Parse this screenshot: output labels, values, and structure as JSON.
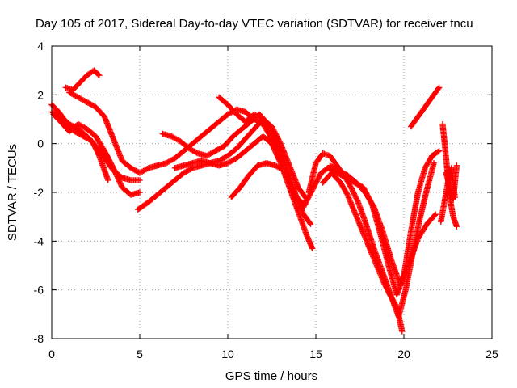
{
  "chart_data": {
    "type": "scatter",
    "title": "Day 105 of 2017, Sidereal Day-to-day VTEC variation (SDTVAR) for receiver tncu",
    "xlabel": "GPS time / hours",
    "ylabel": "SDTVAR / TECUs",
    "xlim": [
      0,
      25
    ],
    "ylim": [
      -8,
      4
    ],
    "xticks": [
      0,
      5,
      10,
      15,
      20,
      25
    ],
    "yticks": [
      -8,
      -6,
      -4,
      -2,
      0,
      2,
      4
    ],
    "grid": true,
    "marker": "+",
    "color": "#ff0000",
    "series": [
      {
        "x": [
          0,
          0.5,
          1.0,
          1.5,
          2.0,
          2.5,
          3.0,
          3.5,
          4.0,
          4.5,
          5.0
        ],
        "y": [
          1.3,
          1.1,
          0.8,
          0.6,
          0.3,
          -0.1,
          -0.6,
          -1.1,
          -1.4,
          -1.5,
          -1.5
        ]
      },
      {
        "x": [
          0,
          0.4,
          0.8,
          1.3,
          1.8,
          2.3,
          2.7,
          3.0,
          3.2
        ],
        "y": [
          1.6,
          1.3,
          0.9,
          0.5,
          0.3,
          0.1,
          -0.5,
          -1.1,
          -1.5
        ]
      },
      {
        "x": [
          0.1,
          0.5,
          1.0,
          1.5,
          2.0,
          2.5,
          3.0,
          3.5,
          4.0,
          4.5,
          5.0
        ],
        "y": [
          1.2,
          0.9,
          0.5,
          0.8,
          0.6,
          0.3,
          -0.3,
          -1.0,
          -1.8,
          -2.1,
          -2.0
        ]
      },
      {
        "x": [
          0.8,
          1.2,
          1.6,
          2.0,
          2.4,
          2.7
        ],
        "y": [
          2.3,
          2.2,
          2.5,
          2.8,
          3.0,
          2.8
        ]
      },
      {
        "x": [
          1.0,
          1.5,
          2.0,
          2.5,
          3.0,
          3.5,
          4.0,
          4.5,
          5.0,
          5.5,
          6.0,
          6.5,
          7.0,
          7.5,
          8.0,
          8.5,
          9.0,
          9.5,
          10.0,
          10.5,
          11.0,
          11.5,
          12.0,
          12.5,
          13.0
        ],
        "y": [
          2.1,
          1.9,
          1.7,
          1.5,
          1.1,
          0.2,
          -0.7,
          -1.0,
          -1.2,
          -1.0,
          -0.9,
          -0.8,
          -0.6,
          -0.3,
          0.0,
          0.3,
          0.6,
          0.9,
          1.2,
          1.4,
          1.3,
          1.0,
          0.8,
          0.2,
          -0.3
        ]
      },
      {
        "x": [
          4.9,
          5.5,
          6.0,
          6.5,
          7.0,
          7.5,
          8.0,
          8.5,
          9.0,
          9.5,
          10.0,
          10.5,
          11.0,
          11.5,
          12.0,
          12.5,
          13.0,
          13.5,
          14.0,
          14.5
        ],
        "y": [
          -2.7,
          -2.4,
          -2.1,
          -1.8,
          -1.5,
          -1.2,
          -1.0,
          -0.9,
          -0.8,
          -0.7,
          -0.5,
          -0.2,
          0.2,
          0.6,
          1.0,
          0.7,
          0.0,
          -0.9,
          -1.8,
          -2.3
        ]
      },
      {
        "x": [
          6.3,
          6.8,
          7.3,
          7.8,
          8.3,
          8.8,
          9.3,
          9.8,
          10.3,
          10.8,
          11.3,
          11.8,
          12.3,
          12.8,
          13.3,
          13.8,
          14.3,
          14.7
        ],
        "y": [
          0.4,
          0.3,
          0.1,
          -0.2,
          -0.4,
          -0.5,
          -0.3,
          -0.1,
          0.3,
          0.6,
          0.9,
          1.2,
          0.8,
          0.1,
          -0.9,
          -2.0,
          -2.9,
          -3.3
        ]
      },
      {
        "x": [
          7.0,
          7.5,
          8.0,
          8.5,
          9.0,
          9.5,
          10.0,
          10.5,
          11.0,
          11.5,
          12.0,
          12.5,
          13.0,
          13.5,
          14.0,
          14.5,
          14.8
        ],
        "y": [
          -1.0,
          -0.9,
          -0.8,
          -0.7,
          -0.8,
          -0.9,
          -0.8,
          -0.6,
          -0.3,
          0.0,
          0.3,
          0.0,
          -0.8,
          -1.8,
          -2.8,
          -3.8,
          -4.3
        ]
      },
      {
        "x": [
          9.5,
          10.0,
          10.5,
          11.0,
          11.5,
          12.0,
          12.5,
          13.0,
          13.5,
          14.0,
          14.4
        ],
        "y": [
          1.9,
          1.6,
          1.2,
          0.9,
          1.2,
          1.0,
          0.2,
          -0.7,
          -1.6,
          -2.3,
          -2.5
        ]
      },
      {
        "x": [
          10.2,
          10.7,
          11.2,
          11.7,
          12.2,
          12.7,
          13.2
        ],
        "y": [
          -2.2,
          -1.8,
          -1.3,
          -0.9,
          -0.8,
          -0.9,
          -1.1
        ]
      },
      {
        "x": [
          14.3,
          14.8,
          15.3,
          15.7,
          16.2,
          16.7,
          17.2,
          17.7,
          18.2,
          18.7,
          19.2,
          19.6,
          20.0,
          20.4,
          20.8,
          21.2,
          21.6,
          22.0
        ],
        "y": [
          -2.6,
          -1.9,
          -1.2,
          -1.0,
          -1.2,
          -1.4,
          -1.6,
          -1.8,
          -2.5,
          -3.8,
          -5.2,
          -6.2,
          -5.4,
          -3.6,
          -2.0,
          -1.0,
          -0.5,
          -0.3
        ]
      },
      {
        "x": [
          14.6,
          15.0,
          15.4,
          15.8,
          16.2,
          16.6,
          17.0,
          17.4,
          17.8,
          18.3,
          18.8,
          19.3,
          19.7,
          20.1,
          20.5,
          20.9,
          21.3,
          21.7
        ],
        "y": [
          -2.0,
          -0.8,
          -0.4,
          -0.5,
          -0.9,
          -1.3,
          -1.8,
          -2.4,
          -3.2,
          -4.3,
          -5.3,
          -6.3,
          -7.1,
          -6.0,
          -4.5,
          -3.1,
          -1.9,
          -0.8
        ]
      },
      {
        "x": [
          15.4,
          15.9,
          16.4,
          16.8,
          17.2,
          17.6,
          18.0,
          18.4,
          18.8,
          19.2,
          19.6,
          19.9
        ],
        "y": [
          -1.6,
          -1.2,
          -1.6,
          -2.1,
          -2.8,
          -3.5,
          -4.2,
          -4.9,
          -5.6,
          -6.2,
          -6.7,
          -7.7
        ]
      },
      {
        "x": [
          15.8,
          16.3,
          16.8,
          17.3,
          17.8,
          18.3,
          18.8,
          19.3,
          19.8,
          20.3,
          20.8,
          21.3,
          21.8
        ],
        "y": [
          -0.9,
          -1.1,
          -1.3,
          -1.6,
          -2.0,
          -2.6,
          -3.6,
          -4.8,
          -5.8,
          -4.9,
          -3.9,
          -3.3,
          -2.9
        ]
      },
      {
        "x": [
          20.4,
          20.8,
          21.2,
          21.6,
          22.0
        ],
        "y": [
          0.7,
          1.1,
          1.5,
          1.9,
          2.3
        ]
      },
      {
        "x": [
          22.1,
          22.3,
          22.5,
          22.7,
          22.9
        ],
        "y": [
          -3.2,
          -2.4,
          -1.6,
          -1.0,
          -2.2
        ]
      },
      {
        "x": [
          22.2,
          22.4,
          22.6,
          22.8,
          23.0
        ],
        "y": [
          0.8,
          -0.6,
          -2.2,
          -3.0,
          -3.4
        ]
      },
      {
        "x": [
          22.4,
          22.6,
          22.8,
          23.0
        ],
        "y": [
          -1.2,
          -1.8,
          -2.3,
          -0.9
        ]
      }
    ]
  }
}
